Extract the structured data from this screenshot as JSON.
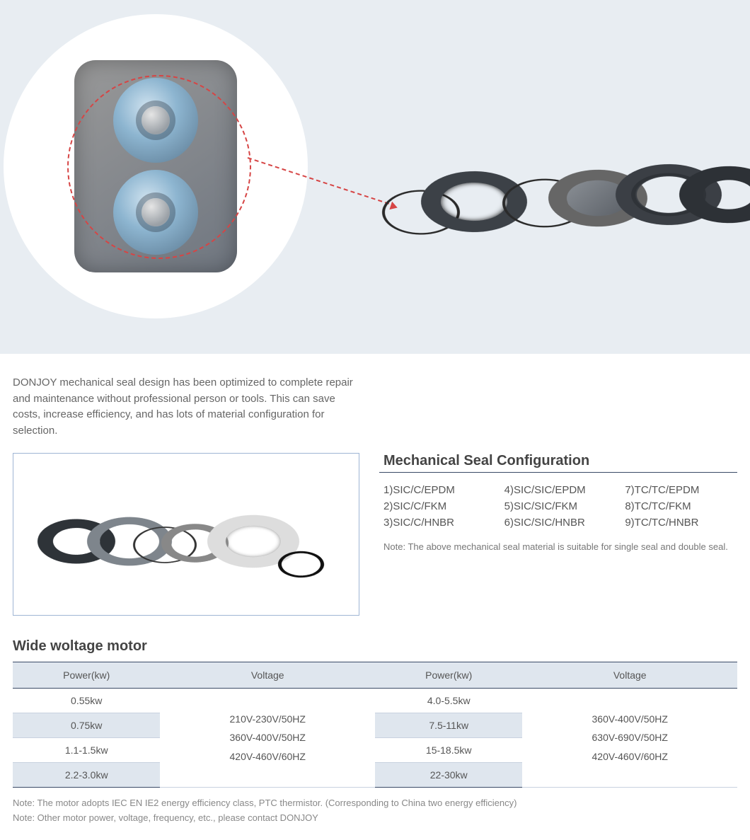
{
  "colors": {
    "hero_bg": "#e8edf2",
    "accent_red": "#d64545",
    "rule_dark": "#3a4a66",
    "th_bg": "#dfe6ee",
    "border_blue": "#9fb5d4",
    "text_body": "#666666",
    "text_muted": "#888888"
  },
  "description": "DONJOY mechanical seal design has been optimized to complete repair and maintenance without professional person or tools. This can save costs, increase efficiency, and has lots of material configuration for selection.",
  "config": {
    "title": "Mechanical Seal Configuration",
    "items": [
      "1)SIC/C/EPDM",
      "4)SIC/SIC/EPDM",
      "7)TC/TC/EPDM",
      "2)SIC/C/FKM",
      "5)SIC/SIC/FKM",
      "8)TC/TC/FKM",
      "3)SIC/C/HNBR",
      "6)SIC/SIC/HNBR",
      "9)TC/TC/HNBR"
    ],
    "note": "Note: The above mechanical seal material is suitable for single seal and double seal."
  },
  "motor": {
    "title": "Wide woltage motor",
    "headers": [
      "Power(kw)",
      "Voltage",
      "Power(kw)",
      "Voltage"
    ],
    "left_powers": [
      "0.55kw",
      "0.75kw",
      "1.1-1.5kw",
      "2.2-3.0kw"
    ],
    "left_voltage": [
      "210V-230V/50HZ",
      "360V-400V/50HZ",
      "420V-460V/60HZ"
    ],
    "right_powers": [
      "4.0-5.5kw",
      "7.5-11kw",
      "15-18.5kw",
      "22-30kw"
    ],
    "right_voltage": [
      "360V-400V/50HZ",
      "630V-690V/50HZ",
      "420V-460V/60HZ"
    ],
    "note1": "Note: The motor adopts IEC EN IE2 energy efficiency class, PTC thermistor. (Corresponding to China two energy efficiency)",
    "note2": "Note: Other motor power, voltage, frequency, etc., please contact DONJOY"
  }
}
